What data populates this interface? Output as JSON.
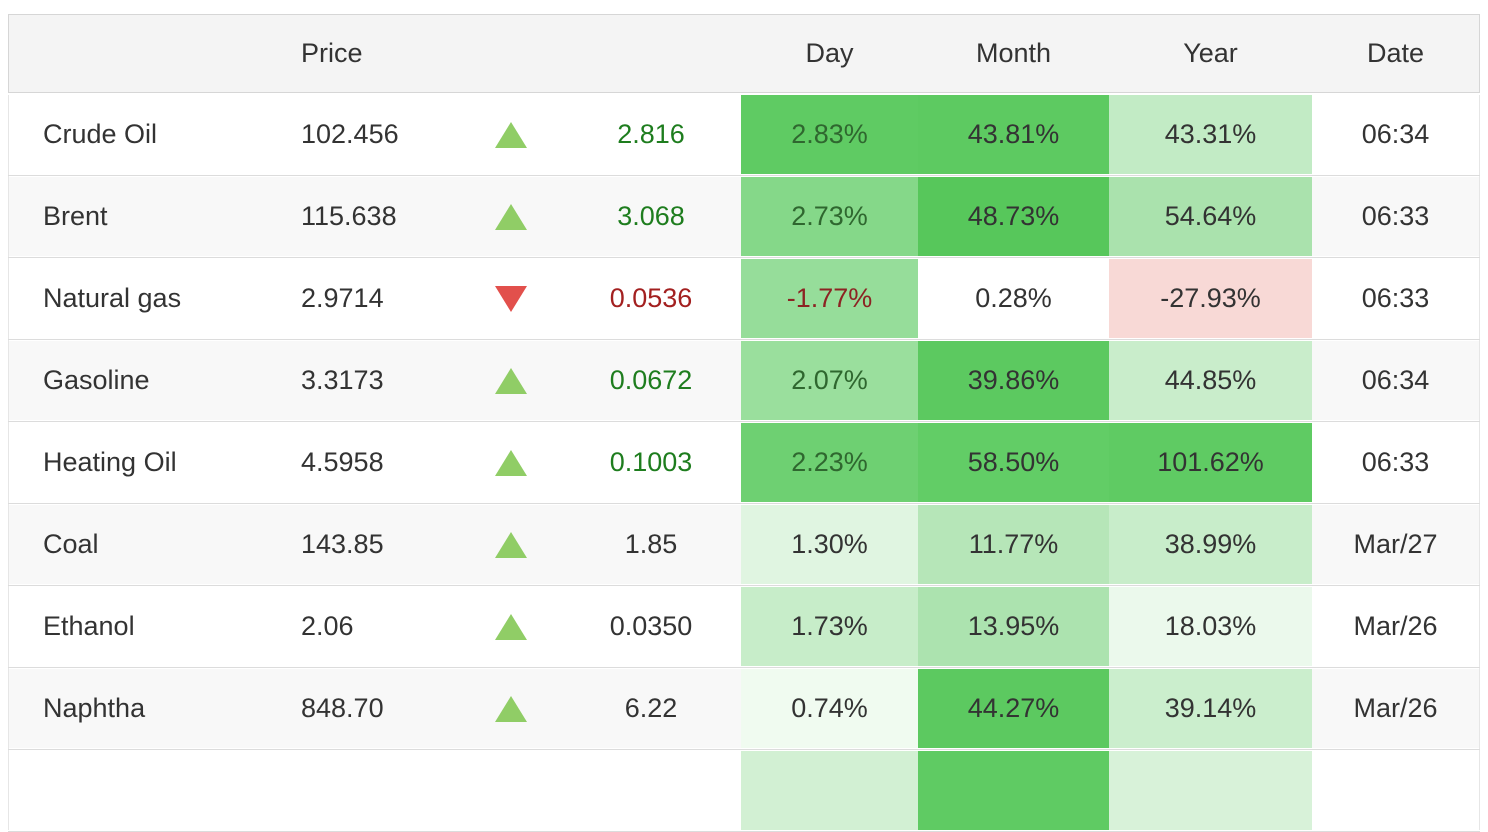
{
  "header": {
    "price": "Price",
    "day": "Day",
    "month": "Month",
    "year": "Year",
    "date": "Date"
  },
  "rows": [
    {
      "name": "Crude Oil",
      "price": "102.456",
      "direction": "up",
      "arrow_color": "#90cd66",
      "change": "2.816",
      "change_color": "#1e7d1e",
      "day": "2.83%",
      "day_bg": "#5fcb63",
      "day_color": "#2f672f",
      "month": "43.81%",
      "month_bg": "#5dca61",
      "month_color": "#333333",
      "year": "43.31%",
      "year_bg": "#c2ebc5",
      "year_color": "#333333",
      "date": "06:34"
    },
    {
      "name": "Brent",
      "price": "115.638",
      "direction": "up",
      "arrow_color": "#90cd66",
      "change": "3.068",
      "change_color": "#1e7d1e",
      "day": "2.73%",
      "day_bg": "#85d889",
      "day_color": "#2f672f",
      "month": "48.73%",
      "month_bg": "#57c75b",
      "month_color": "#333333",
      "year": "54.64%",
      "year_bg": "#aae2ad",
      "year_color": "#333333",
      "date": "06:33"
    },
    {
      "name": "Natural gas",
      "price": "2.9714",
      "direction": "down",
      "arrow_color": "#e2504c",
      "change": "0.0536",
      "change_color": "#a32020",
      "day": "-1.77%",
      "day_bg": "#96dd9a",
      "day_color": "#8c2323",
      "month": "0.28%",
      "month_bg": "#ffffff",
      "month_color": "#333333",
      "year": "-27.93%",
      "year_bg": "#f8d9d6",
      "year_color": "#333333",
      "date": "06:33"
    },
    {
      "name": "Gasoline",
      "price": "3.3173",
      "direction": "up",
      "arrow_color": "#90cd66",
      "change": "0.0672",
      "change_color": "#1e7d1e",
      "day": "2.07%",
      "day_bg": "#9adf9d",
      "day_color": "#2f672f",
      "month": "39.86%",
      "month_bg": "#5cc960",
      "month_color": "#333333",
      "year": "44.85%",
      "year_bg": "#c9edcb",
      "year_color": "#333333",
      "date": "06:34"
    },
    {
      "name": "Heating Oil",
      "price": "4.5958",
      "direction": "up",
      "arrow_color": "#90cd66",
      "change": "0.1003",
      "change_color": "#1e7d1e",
      "day": "2.23%",
      "day_bg": "#6ed072",
      "day_color": "#2f672f",
      "month": "58.50%",
      "month_bg": "#62cd66",
      "month_color": "#333333",
      "year": "101.62%",
      "year_bg": "#5fcb63",
      "year_color": "#333333",
      "date": "06:33"
    },
    {
      "name": "Coal",
      "price": "143.85",
      "direction": "up",
      "arrow_color": "#90cd66",
      "change": "1.85",
      "change_color": "#333333",
      "day": "1.30%",
      "day_bg": "#e0f5e1",
      "day_color": "#333333",
      "month": "11.77%",
      "month_bg": "#b6e6b8",
      "month_color": "#333333",
      "year": "38.99%",
      "year_bg": "#c8edca",
      "year_color": "#333333",
      "date": "Mar/27"
    },
    {
      "name": "Ethanol",
      "price": "2.06",
      "direction": "up",
      "arrow_color": "#90cd66",
      "change": "0.0350",
      "change_color": "#333333",
      "day": "1.73%",
      "day_bg": "#c7edc9",
      "day_color": "#333333",
      "month": "13.95%",
      "month_bg": "#ace3af",
      "month_color": "#333333",
      "year": "18.03%",
      "year_bg": "#ebf9ec",
      "year_color": "#333333",
      "date": "Mar/26"
    },
    {
      "name": "Naphtha",
      "price": "848.70",
      "direction": "up",
      "arrow_color": "#90cd66",
      "change": "6.22",
      "change_color": "#333333",
      "day": "0.74%",
      "day_bg": "#f0fbf0",
      "day_color": "#333333",
      "month": "44.27%",
      "month_bg": "#5cc960",
      "month_color": "#333333",
      "year": "39.14%",
      "year_bg": "#cbeecd",
      "year_color": "#333333",
      "date": "Mar/26"
    },
    {
      "name": "",
      "price": "",
      "direction": "up",
      "arrow_color": "transparent",
      "change": "",
      "change_color": "#333333",
      "day": "",
      "day_bg": "#d2f0d3",
      "day_color": "#333333",
      "month": "",
      "month_bg": "#5fcb63",
      "month_color": "#333333",
      "year": "",
      "year_bg": "#d8f2d9",
      "year_color": "#333333",
      "date": ""
    }
  ]
}
